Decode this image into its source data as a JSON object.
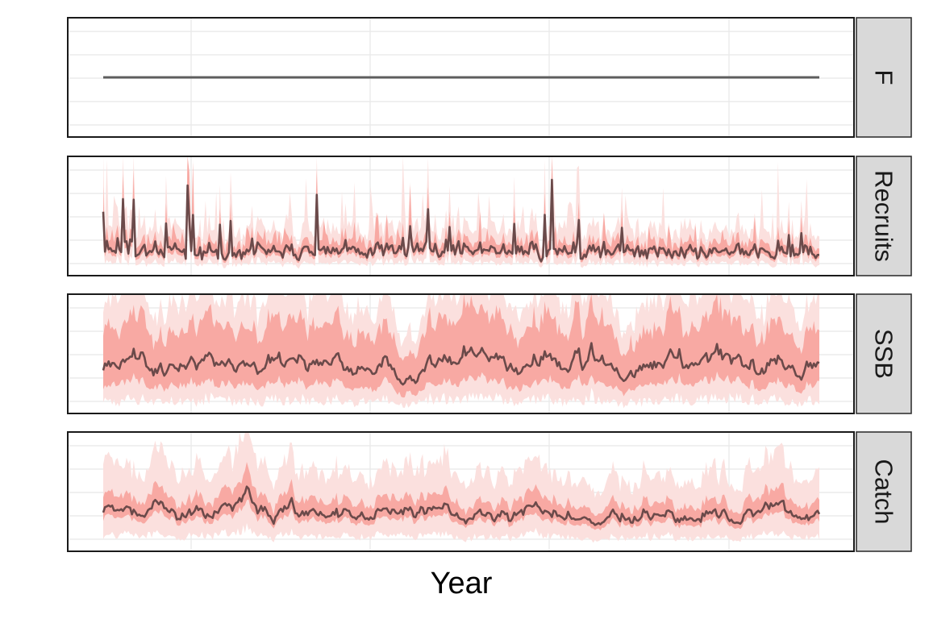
{
  "chart_data": {
    "type": "line",
    "xlabel": "Year",
    "ylabel": "",
    "title": "",
    "grid": true,
    "legend": "none",
    "facets": [
      {
        "label": "F",
        "median": 0.5,
        "ylim": [
          0,
          1
        ],
        "series_seed": 0
      },
      {
        "label": "Recruits",
        "median": 1.0,
        "ylim": [
          0,
          5
        ],
        "series_seed": 11
      },
      {
        "label": "SSB",
        "median": 1.0,
        "ylim": [
          0,
          2.5
        ],
        "series_seed": 23
      },
      {
        "label": "Catch",
        "median": 1.0,
        "ylim": [
          0,
          3
        ],
        "series_seed": 37
      }
    ],
    "x_range": [
      1,
      400
    ],
    "colors": {
      "median_line": "#6b4a4a",
      "band_inner": "#f8a9a3",
      "band_outer": "#fbe0de",
      "constant_line": "#5e5e5e",
      "grid": "#ebebeb",
      "strip_fill": "#d9d9d9"
    }
  }
}
